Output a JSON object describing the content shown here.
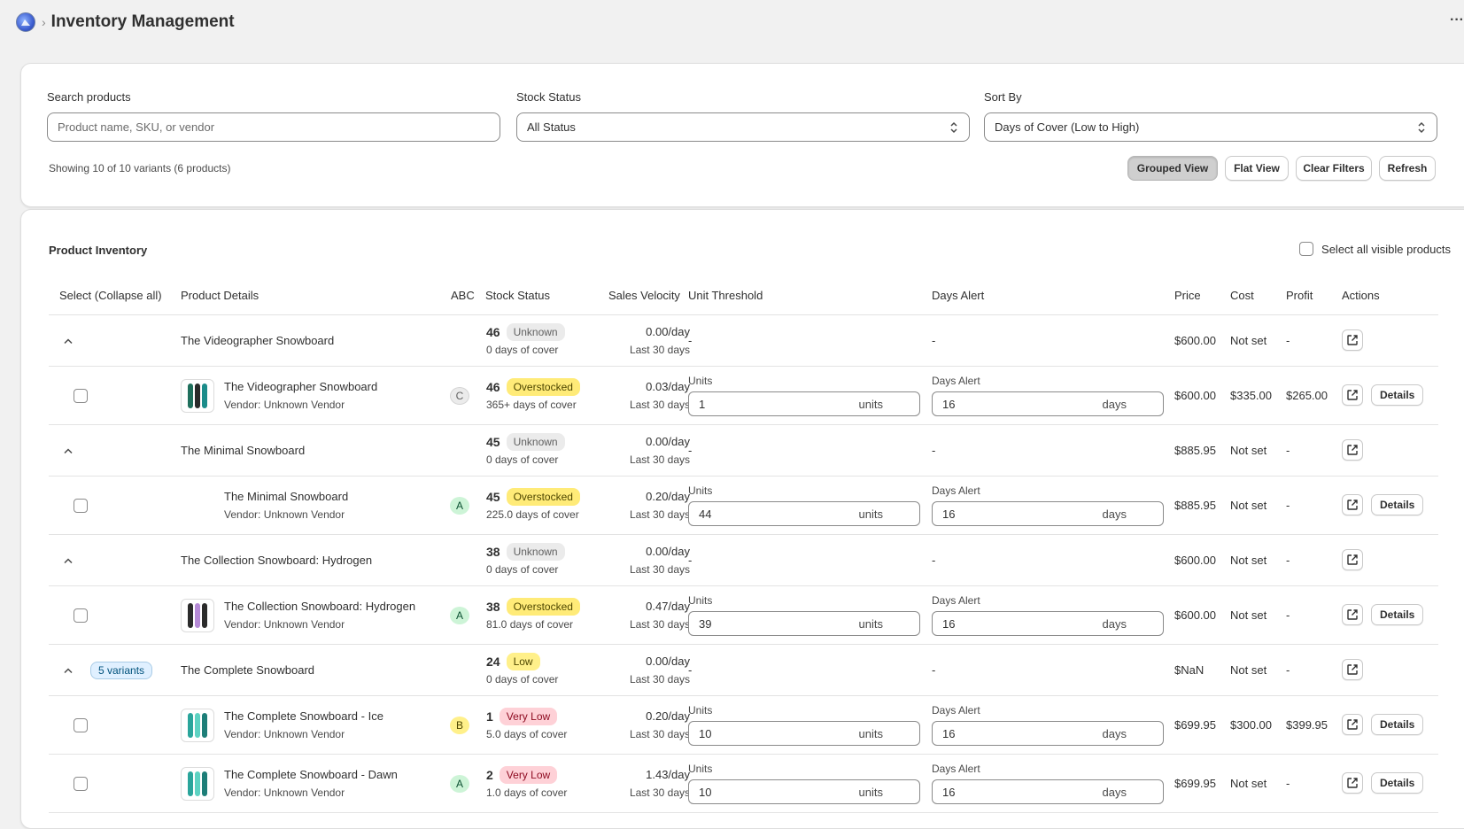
{
  "header": {
    "title": "Inventory Management",
    "crumb_sep": "›",
    "more": "···"
  },
  "filters": {
    "search_label": "Search products",
    "search_placeholder": "Product name, SKU, or vendor",
    "status_label": "Stock Status",
    "status_value": "All Status",
    "sort_label": "Sort By",
    "sort_value": "Days of Cover (Low to High)",
    "showing": "Showing 10 of 10 variants (6 products)",
    "buttons": {
      "grouped": "Grouped View",
      "flat": "Flat View",
      "clear": "Clear Filters",
      "refresh": "Refresh"
    }
  },
  "inventory": {
    "title": "Product Inventory",
    "select_all": "Select all visible products",
    "columns": {
      "select": "Select (Collapse all)",
      "details": "Product Details",
      "abc": "ABC",
      "status": "Stock Status",
      "velocity": "Sales Velocity",
      "threshold": "Unit Threshold",
      "days_alert": "Days Alert",
      "price": "Price",
      "cost": "Cost",
      "profit": "Profit",
      "actions": "Actions"
    },
    "units_label": "Units",
    "days_label": "Days Alert",
    "units_suffix": "units",
    "days_suffix": "days",
    "details_btn": "Details",
    "dash": "-",
    "rows": [
      {
        "type": "group",
        "name": "The Videographer Snowboard",
        "badge": "",
        "qty": "46",
        "status": "Unknown",
        "cover": "0 days of cover",
        "velocity": "0.00/day",
        "period": "Last 30 days",
        "price": "$600.00",
        "cost": "Not set",
        "profit": "-"
      },
      {
        "type": "variant",
        "name": "The Videographer Snowboard",
        "vendor": "Vendor: Unknown Vendor",
        "thumb": "videographer",
        "abc": "C",
        "qty": "46",
        "status": "Overstocked",
        "cover": "365+ days of cover",
        "velocity": "0.03/day",
        "period": "Last 30 days",
        "units": "1",
        "days": "16",
        "price": "$600.00",
        "cost": "$335.00",
        "profit": "$265.00"
      },
      {
        "type": "group",
        "name": "The Minimal Snowboard",
        "badge": "",
        "qty": "45",
        "status": "Unknown",
        "cover": "0 days of cover",
        "velocity": "0.00/day",
        "period": "Last 30 days",
        "price": "$885.95",
        "cost": "Not set",
        "profit": "-"
      },
      {
        "type": "variant",
        "name": "The Minimal Snowboard",
        "vendor": "Vendor: Unknown Vendor",
        "thumb": "",
        "abc": "A",
        "qty": "45",
        "status": "Overstocked",
        "cover": "225.0 days of cover",
        "velocity": "0.20/day",
        "period": "Last 30 days",
        "units": "44",
        "days": "16",
        "price": "$885.95",
        "cost": "Not set",
        "profit": "-"
      },
      {
        "type": "group",
        "name": "The Collection Snowboard: Hydrogen",
        "badge": "",
        "qty": "38",
        "status": "Unknown",
        "cover": "0 days of cover",
        "velocity": "0.00/day",
        "period": "Last 30 days",
        "price": "$600.00",
        "cost": "Not set",
        "profit": "-"
      },
      {
        "type": "variant",
        "name": "The Collection Snowboard: Hydrogen",
        "vendor": "Vendor: Unknown Vendor",
        "thumb": "hydrogen",
        "abc": "A",
        "qty": "38",
        "status": "Overstocked",
        "cover": "81.0 days of cover",
        "velocity": "0.47/day",
        "period": "Last 30 days",
        "units": "39",
        "days": "16",
        "price": "$600.00",
        "cost": "Not set",
        "profit": "-"
      },
      {
        "type": "group",
        "name": "The Complete Snowboard",
        "badge": "5 variants",
        "qty": "24",
        "status": "Low",
        "cover": "0 days of cover",
        "velocity": "0.00/day",
        "period": "Last 30 days",
        "price": "$NaN",
        "cost": "Not set",
        "profit": "-"
      },
      {
        "type": "variant",
        "name": "The Complete Snowboard - Ice",
        "vendor": "Vendor: Unknown Vendor",
        "thumb": "complete",
        "abc": "B",
        "qty": "1",
        "status": "Very Low",
        "cover": "5.0 days of cover",
        "velocity": "0.20/day",
        "period": "Last 30 days",
        "units": "10",
        "days": "16",
        "price": "$699.95",
        "cost": "$300.00",
        "profit": "$399.95"
      },
      {
        "type": "variant",
        "name": "The Complete Snowboard - Dawn",
        "vendor": "Vendor: Unknown Vendor",
        "thumb": "complete",
        "abc": "A",
        "qty": "2",
        "status": "Very Low",
        "cover": "1.0 days of cover",
        "velocity": "1.43/day",
        "period": "Last 30 days",
        "units": "10",
        "days": "16",
        "price": "$699.95",
        "cost": "Not set",
        "profit": "-"
      }
    ]
  },
  "colors": {
    "accent_badge": "#e0f0ff",
    "overstocked": "#ffeb78",
    "very_low": "#fed1d7",
    "abc_a": "#cdf4d7"
  }
}
